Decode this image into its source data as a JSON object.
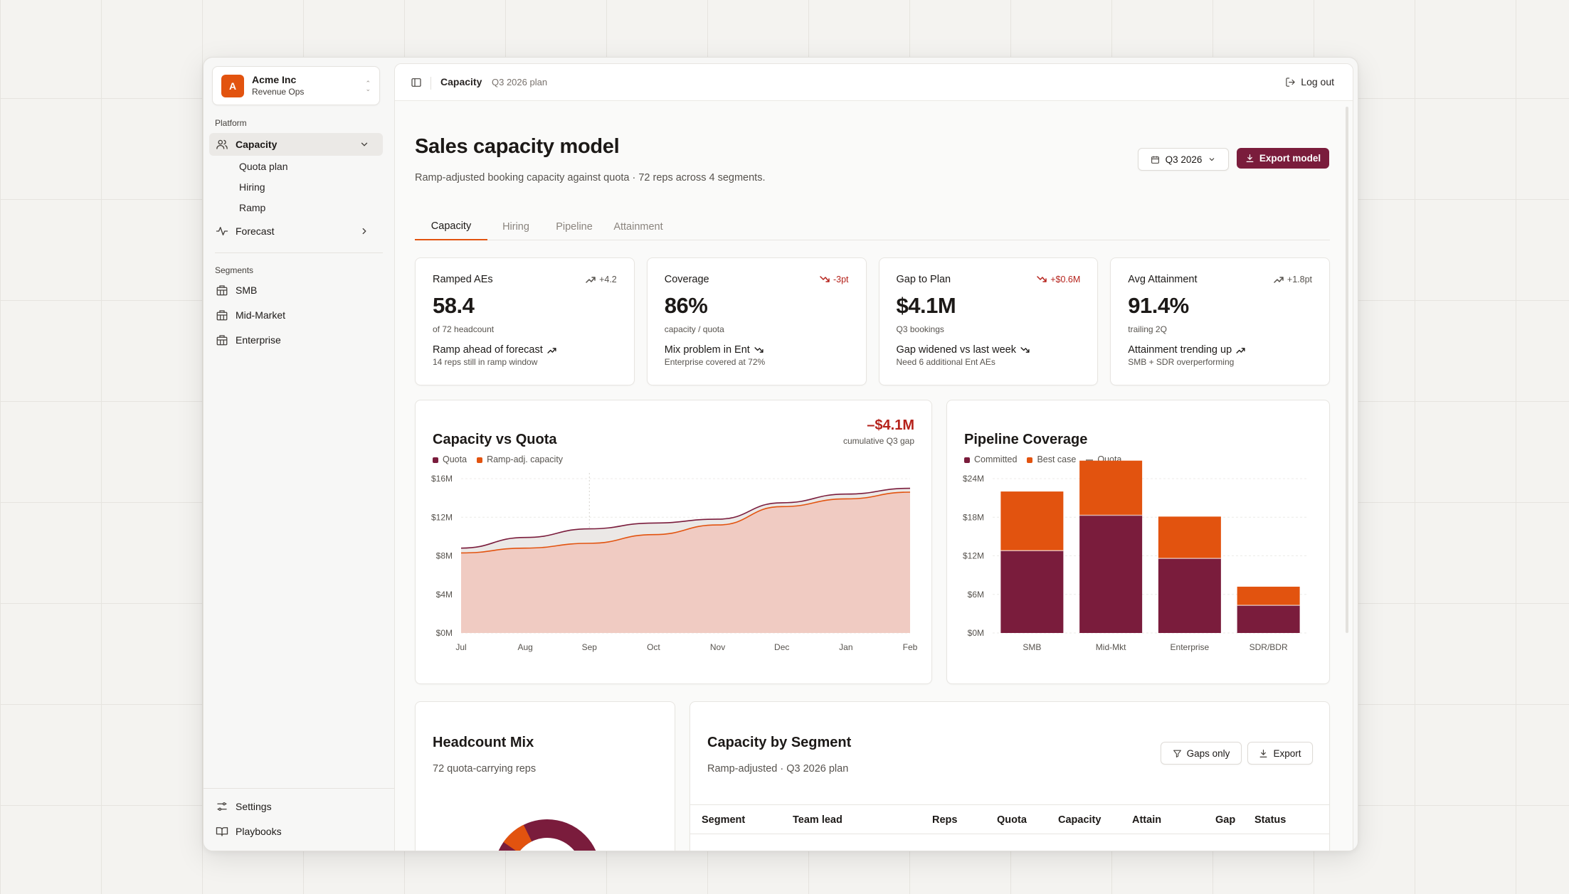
{
  "org": {
    "initial": "A",
    "name": "Acme Inc",
    "team": "Revenue Ops"
  },
  "sidebar": {
    "platform_label": "Platform",
    "capacity": "Capacity",
    "capacity_children": [
      "Quota plan",
      "Hiring",
      "Ramp"
    ],
    "forecast": "Forecast",
    "segments_label": "Segments",
    "segments": [
      "SMB",
      "Mid-Market",
      "Enterprise"
    ],
    "settings": "Settings",
    "playbooks": "Playbooks"
  },
  "topbar": {
    "crumb": "Capacity",
    "sub": "Q3 2026 plan",
    "logout": "Log out"
  },
  "page": {
    "title": "Sales capacity model",
    "subtitle": "Ramp-adjusted booking capacity against quota · 72 reps across 4 segments.",
    "period": "Q3 2026",
    "export": "Export model"
  },
  "tabs": [
    "Capacity",
    "Hiring",
    "Pipeline",
    "Attainment"
  ],
  "kpis": [
    {
      "label": "Ramped AEs",
      "delta": "+4.2",
      "trend": "up",
      "value": "58.4",
      "caption": "of 72 headcount",
      "note": "Ramp ahead of forecast",
      "sub": "14 reps still in ramp window"
    },
    {
      "label": "Coverage",
      "delta": "-3pt",
      "trend": "down",
      "value": "86%",
      "caption": "capacity / quota",
      "note": "Mix problem in Ent",
      "sub": "Enterprise covered at 72%"
    },
    {
      "label": "Gap to Plan",
      "delta": "+$0.6M",
      "trend": "down",
      "value": "$4.1M",
      "caption": "Q3 bookings",
      "note": "Gap widened vs last week",
      "sub": "Need 6 additional Ent AEs"
    },
    {
      "label": "Avg Attainment",
      "delta": "+1.8pt",
      "trend": "up",
      "value": "91.4%",
      "caption": "trailing 2Q",
      "note": "Attainment trending up",
      "sub": "SMB + SDR overperforming"
    }
  ],
  "colors": {
    "quota": "#7a1c3c",
    "capacity": "#e2530f",
    "capacity_fill": "#f0cbc2",
    "accent": "#7a1c3c",
    "negative": "#b5221b"
  },
  "chart_data": [
    {
      "type": "area",
      "title": "Capacity vs Quota",
      "gap_value": "–$4.1M",
      "gap_label": "cumulative Q3 gap",
      "categories": [
        "Jul",
        "Aug",
        "Sep",
        "Oct",
        "Nov",
        "Dec",
        "Jan",
        "Feb"
      ],
      "yticks": [
        "$16M",
        "$12M",
        "$8M",
        "$4M",
        "$0M"
      ],
      "ylim": [
        0,
        16
      ],
      "series": [
        {
          "name": "Quota",
          "values": [
            8.8,
            9.9,
            10.8,
            11.4,
            11.8,
            13.5,
            14.4,
            15.0
          ]
        },
        {
          "name": "Ramp-adj. capacity",
          "values": [
            8.3,
            8.8,
            9.3,
            10.2,
            11.2,
            13.1,
            13.9,
            14.6
          ]
        }
      ]
    },
    {
      "type": "bar",
      "title": "Pipeline Coverage",
      "legend": [
        "Committed",
        "Best case",
        "Quota"
      ],
      "categories": [
        "SMB",
        "Mid-Mkt",
        "Enterprise",
        "SDR/BDR"
      ],
      "yticks": [
        "$24M",
        "$18M",
        "$12M",
        "$6M",
        "$0M"
      ],
      "ylim": [
        0,
        24
      ],
      "series": [
        {
          "name": "Committed",
          "values": [
            12.8,
            18.3,
            11.6,
            4.3
          ]
        },
        {
          "name": "Best case",
          "values": [
            9.2,
            8.5,
            6.5,
            2.9
          ]
        }
      ]
    }
  ],
  "headcount": {
    "title": "Headcount Mix",
    "subtitle": "72 quota-carrying reps"
  },
  "segment_table": {
    "title": "Capacity by Segment",
    "subtitle": "Ramp-adjusted · Q3 2026 plan",
    "gaps_only": "Gaps only",
    "export": "Export",
    "columns": [
      "Segment",
      "Team lead",
      "Reps",
      "Quota",
      "Capacity",
      "Attain",
      "Gap",
      "Status"
    ]
  }
}
